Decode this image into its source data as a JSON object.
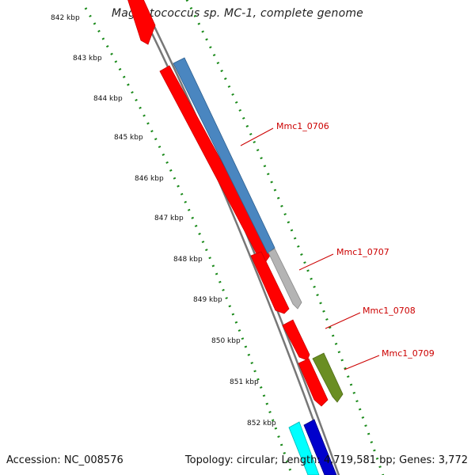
{
  "title": "Magnetococcus sp. MC-1, complete genome",
  "footer": {
    "accession": "Accession: NC_008576",
    "summary": "Topology: circular; Length: 4,719,581 bp; Genes: 3,772"
  },
  "scale_ticks": [
    "842 kbp",
    "843 kbp",
    "844 kbp",
    "845 kbp",
    "846 kbp",
    "847 kbp",
    "848 kbp",
    "849 kbp",
    "850 kbp",
    "851 kbp",
    "852 kbp"
  ],
  "gene_labels": [
    "Mmc1_0706",
    "Mmc1_0707",
    "Mmc1_0708",
    "Mmc1_0709"
  ],
  "colors": {
    "backbone": "#888888",
    "forward_ruler": "#228822",
    "gene_red": "#ff0000",
    "gene_blue": "#4a86c0",
    "gene_grey": "#b4b4b4",
    "gene_olive": "#6a8e23",
    "gene_cyan": "#00ffff",
    "gene_darkblue": "#0000cc",
    "label_red": "#cc0000"
  }
}
